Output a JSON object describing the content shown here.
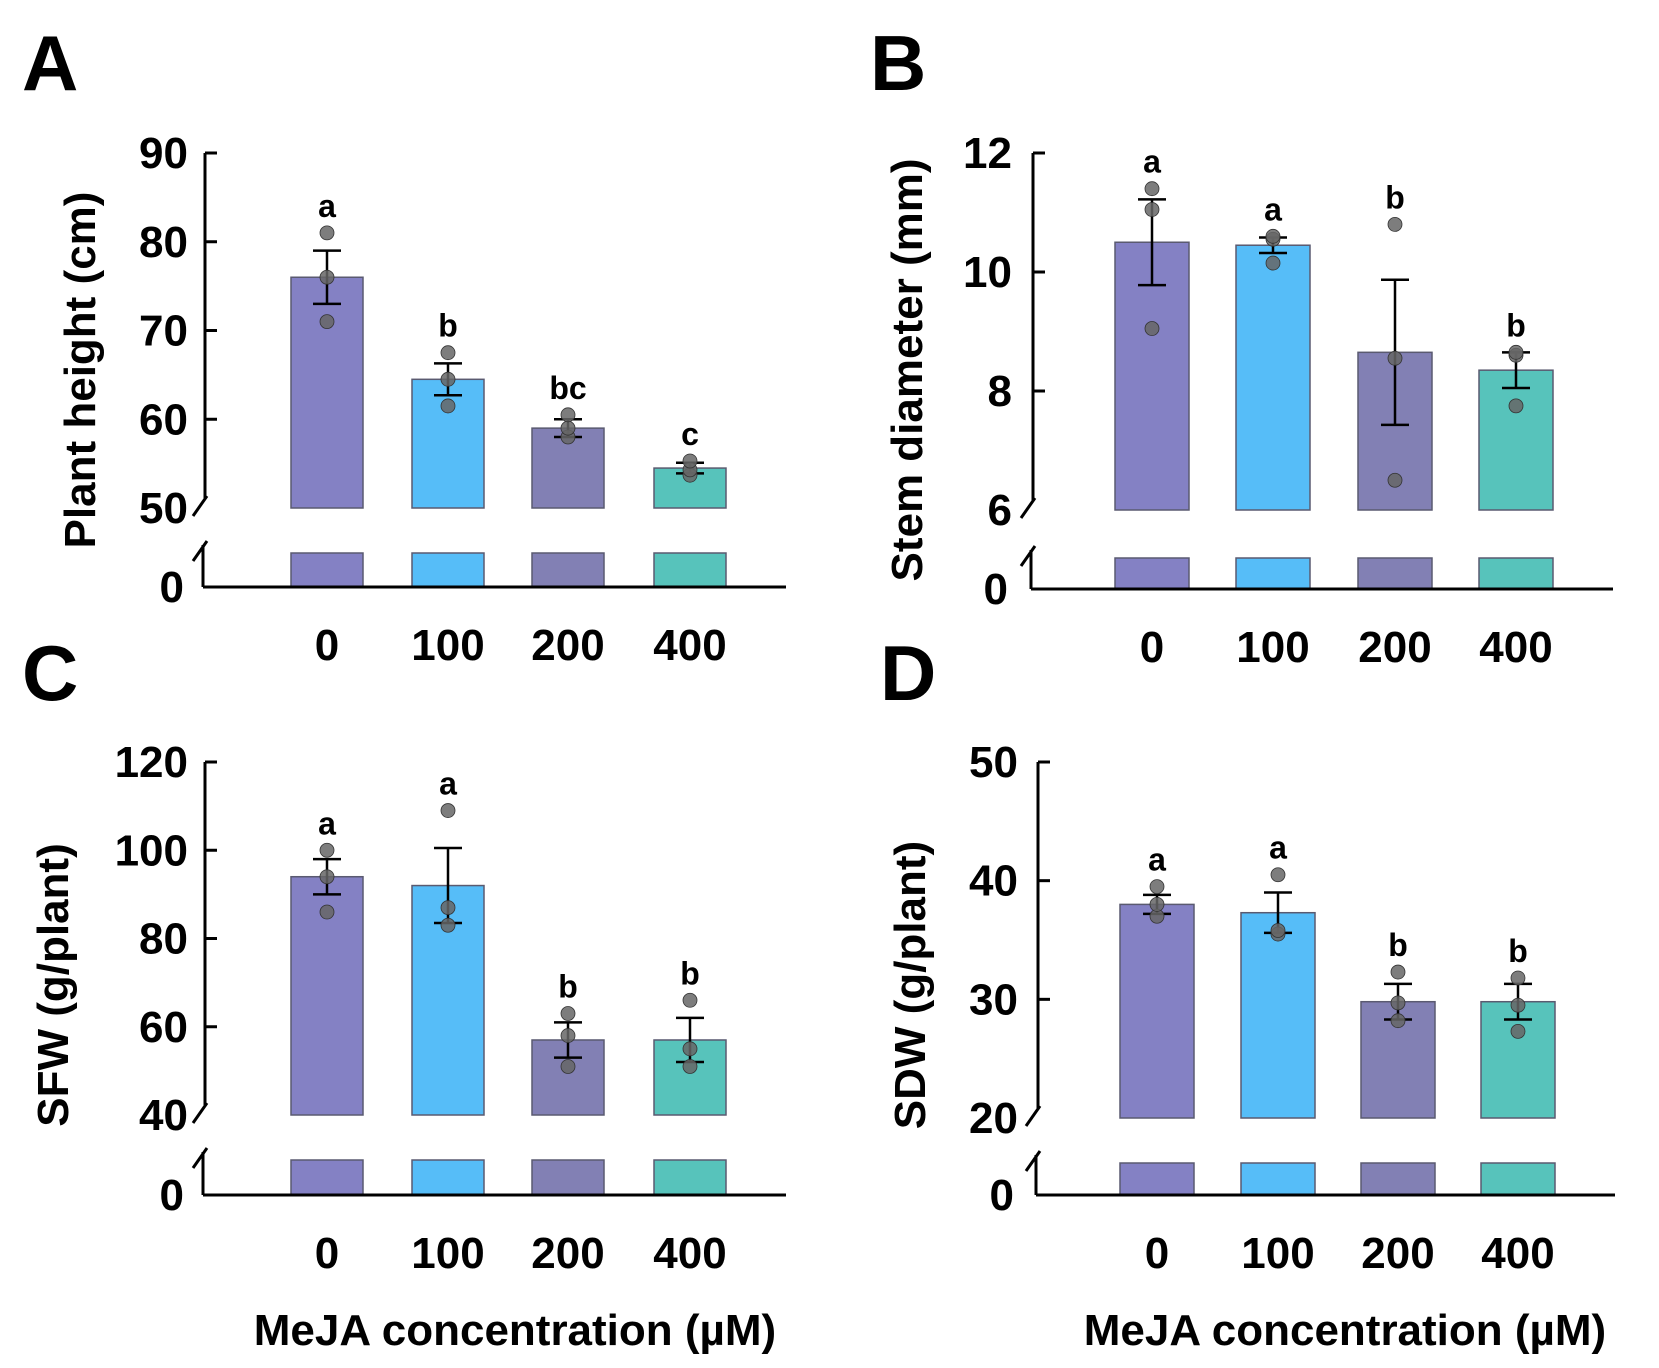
{
  "colors": {
    "bar_0": "#8481c4",
    "bar_100": "#56bdf8",
    "bar_200": "#8280b4",
    "bar_400": "#57c3bb",
    "axis": "#000000",
    "point": "#555555"
  },
  "x_axis_title": "MeJA concentration (µM)",
  "chart_data": [
    {
      "panel": "A",
      "type": "bar",
      "ylabel": "Plant height (cm)",
      "categories": [
        "0",
        "100",
        "200",
        "400"
      ],
      "values": [
        76,
        64.5,
        59,
        54.5
      ],
      "errors": [
        3,
        1.8,
        1,
        0.6
      ],
      "points": [
        [
          71,
          76,
          81
        ],
        [
          61.5,
          64.5,
          67.5
        ],
        [
          58,
          59,
          60.5
        ],
        [
          53.7,
          54.3,
          55.3
        ]
      ],
      "letters": [
        "a",
        "b",
        "bc",
        "c"
      ],
      "ylim": [
        50,
        90
      ],
      "yticks": [
        "90",
        "80",
        "70",
        "60",
        "50"
      ],
      "ytick_values": [
        90,
        80,
        70,
        60,
        50
      ],
      "axis_break": true,
      "lower_tick": "0"
    },
    {
      "panel": "B",
      "type": "bar",
      "ylabel": "Stem diameter (mm)",
      "categories": [
        "0",
        "100",
        "200",
        "400"
      ],
      "values": [
        10.5,
        10.45,
        8.65,
        8.35
      ],
      "errors": [
        0.72,
        0.13,
        1.22,
        0.3
      ],
      "points": [
        [
          9.05,
          11.05,
          11.4
        ],
        [
          10.15,
          10.55,
          10.6
        ],
        [
          6.5,
          8.55,
          10.8
        ],
        [
          7.75,
          8.6,
          8.65
        ]
      ],
      "letters": [
        "a",
        "a",
        "b",
        "b"
      ],
      "ylim": [
        6,
        12
      ],
      "yticks": [
        "12",
        "10",
        "8",
        "6"
      ],
      "ytick_values": [
        12,
        10,
        8,
        6
      ],
      "axis_break": true,
      "lower_tick": "0"
    },
    {
      "panel": "C",
      "type": "bar",
      "ylabel": "SFW (g/plant)",
      "categories": [
        "0",
        "100",
        "200",
        "400"
      ],
      "values": [
        94,
        92,
        57,
        57
      ],
      "errors": [
        4,
        8.5,
        4,
        5
      ],
      "points": [
        [
          86,
          94,
          100
        ],
        [
          83,
          87,
          109
        ],
        [
          51,
          58,
          63
        ],
        [
          51,
          55,
          66
        ]
      ],
      "letters": [
        "a",
        "a",
        "b",
        "b"
      ],
      "ylim": [
        40,
        120
      ],
      "yticks": [
        "120",
        "100",
        "80",
        "60",
        "40"
      ],
      "ytick_values": [
        120,
        100,
        80,
        60,
        40
      ],
      "axis_break": true,
      "lower_tick": "0"
    },
    {
      "panel": "D",
      "type": "bar",
      "ylabel": "SDW (g/plant)",
      "categories": [
        "0",
        "100",
        "200",
        "400"
      ],
      "values": [
        38,
        37.3,
        29.8,
        29.8
      ],
      "errors": [
        0.8,
        1.7,
        1.5,
        1.5
      ],
      "points": [
        [
          37,
          38,
          39.5
        ],
        [
          35.5,
          35.8,
          40.5
        ],
        [
          28.2,
          29.7,
          32.3
        ],
        [
          27.3,
          29.5,
          31.8
        ]
      ],
      "letters": [
        "a",
        "a",
        "b",
        "b"
      ],
      "ylim": [
        20,
        50
      ],
      "yticks": [
        "50",
        "40",
        "30",
        "20"
      ],
      "ytick_values": [
        50,
        40,
        30,
        20
      ],
      "axis_break": true,
      "lower_tick": "0"
    }
  ]
}
